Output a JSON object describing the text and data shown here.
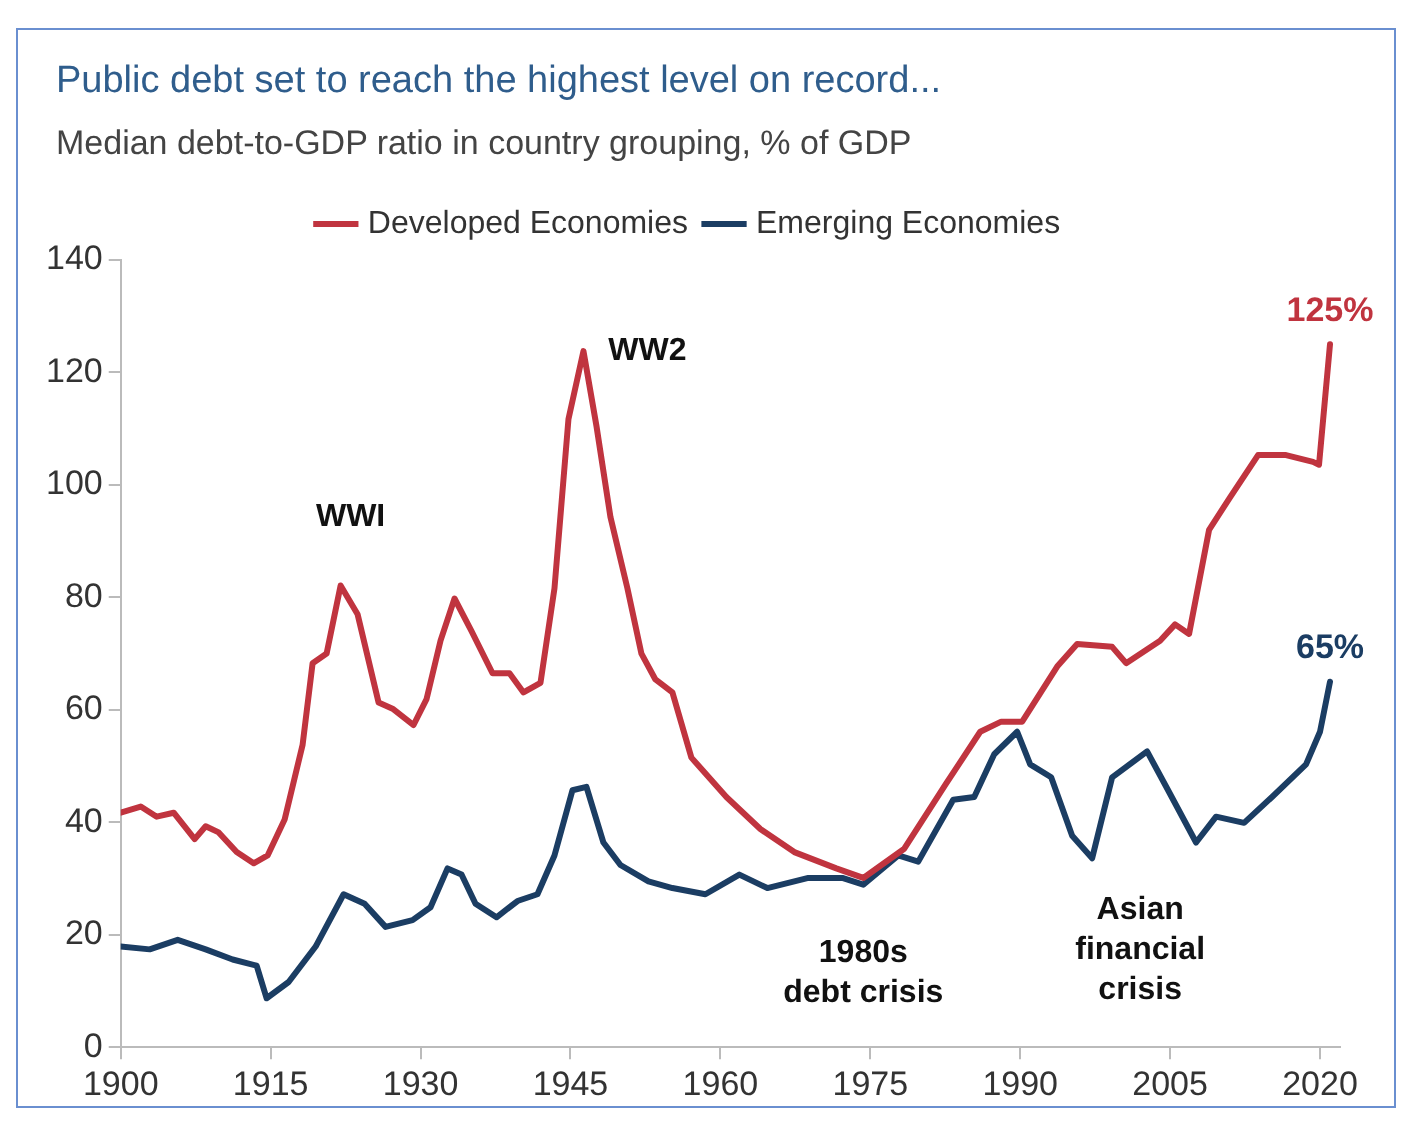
{
  "chart_data": {
    "type": "line",
    "title": "Public debt set to reach the highest level on record...",
    "subtitle": "Median debt-to-GDP ratio in country grouping, % of GDP",
    "series": [
      {
        "name": "Developed Economies",
        "color": "#c0343f",
        "x": [
          1900,
          1902,
          1903.6,
          1905.3,
          1907.4,
          1908.5,
          1909.8,
          1911.6,
          1913.3,
          1914.7,
          1916.4,
          1918.2,
          1919.2,
          1920.6,
          1922,
          1923.7,
          1925.8,
          1927.2,
          1929.3,
          1930.6,
          1932,
          1933.4,
          1935.1,
          1937.2,
          1938.9,
          1940.3,
          1942,
          1943.4,
          1944.8,
          1946.3,
          1947.6,
          1949,
          1950.7,
          1952.1,
          1953.5,
          1955.2,
          1957.1,
          1960.6,
          1964,
          1967.4,
          1971.6,
          1974.3,
          1978.4,
          1982.6,
          1986,
          1988.1,
          1990.2,
          1993.7,
          1995.7,
          1999.2,
          2000.6,
          2004,
          2005.5,
          2006.9,
          2008.9,
          2011,
          2013.8,
          2016.6,
          2019.3,
          2019.9,
          2021
        ],
        "values": [
          41.7,
          42.8,
          41,
          41.7,
          37,
          39.3,
          38.2,
          34.7,
          32.7,
          34.1,
          40.5,
          53.8,
          68.3,
          70,
          82.1,
          77,
          61.3,
          60.2,
          57.3,
          61.9,
          72.3,
          79.8,
          74,
          66.5,
          66.5,
          63.1,
          64.8,
          81.6,
          111.7,
          123.8,
          110.5,
          94.3,
          81.6,
          70,
          65.4,
          63.1,
          51.5,
          44.5,
          38.8,
          34.7,
          31.8,
          30.1,
          35.3,
          46.9,
          56.1,
          57.9,
          57.9,
          67.7,
          71.7,
          71.2,
          68.3,
          72.3,
          75.2,
          73.5,
          92,
          97.8,
          105.3,
          105.3,
          104.1,
          103.6,
          125
        ],
        "value_labels": [
          null,
          null,
          null,
          null,
          null,
          null,
          null,
          null,
          null,
          null,
          null,
          null,
          null,
          null,
          null,
          null,
          null,
          null,
          null,
          null,
          null,
          null,
          null,
          null,
          null,
          null,
          null,
          null,
          null,
          null,
          null,
          null,
          null,
          null,
          null,
          null,
          null,
          null,
          null,
          null,
          null,
          null,
          null,
          null,
          null,
          null,
          null,
          null,
          null,
          null,
          null,
          null,
          null,
          null,
          null,
          null,
          null,
          null,
          null,
          null,
          "125%"
        ]
      },
      {
        "name": "Emerging Economies",
        "color": "#1b3d63",
        "x": [
          1900,
          1902.9,
          1905.7,
          1908.5,
          1911.2,
          1913.6,
          1914.6,
          1916.8,
          1919.5,
          1922.3,
          1924.4,
          1926.5,
          1929.2,
          1931,
          1932.7,
          1934.1,
          1935.5,
          1937.6,
          1939.7,
          1941.7,
          1943.4,
          1945.2,
          1946.6,
          1948.3,
          1950,
          1952.8,
          1955.2,
          1958.5,
          1961.9,
          1964.7,
          1968.8,
          1972.2,
          1974.3,
          1977.8,
          1979.8,
          1983.3,
          1985.4,
          1987.4,
          1989.7,
          1991,
          1993.1,
          1995.2,
          1997.2,
          1999.2,
          2002.7,
          2004.8,
          2007.6,
          2009.6,
          2012.4,
          2015.2,
          2018.6,
          2020,
          2021
        ],
        "values": [
          17.9,
          17.4,
          19.1,
          17.4,
          15.6,
          14.5,
          8.7,
          11.6,
          17.9,
          27.2,
          25.5,
          21.4,
          22.6,
          24.9,
          31.8,
          30.7,
          25.5,
          23.1,
          26,
          27.2,
          34.1,
          45.7,
          46.3,
          36.4,
          32.4,
          29.5,
          28.3,
          27.2,
          30.7,
          28.3,
          30.1,
          30.1,
          28.9,
          34.1,
          33,
          44,
          44.5,
          52.1,
          56.1,
          50.3,
          48,
          37.6,
          33.6,
          48,
          52.6,
          45.7,
          36.4,
          41,
          39.9,
          44.5,
          50.3,
          56.1,
          65
        ],
        "value_labels": [
          null,
          null,
          null,
          null,
          null,
          null,
          null,
          null,
          null,
          null,
          null,
          null,
          null,
          null,
          null,
          null,
          null,
          null,
          null,
          null,
          null,
          null,
          null,
          null,
          null,
          null,
          null,
          null,
          null,
          null,
          null,
          null,
          null,
          null,
          null,
          null,
          null,
          null,
          null,
          null,
          null,
          null,
          null,
          null,
          null,
          null,
          null,
          null,
          null,
          null,
          null,
          null,
          "65%"
        ]
      }
    ],
    "xlim": [
      1900,
      2022
    ],
    "xticks": [
      1900,
      1915,
      1930,
      1945,
      1960,
      1975,
      1990,
      2005,
      2020
    ],
    "ylim": [
      0,
      140
    ],
    "yticks": [
      0,
      20,
      40,
      60,
      80,
      100,
      120,
      140
    ],
    "grid": false,
    "legend": "top",
    "marker": "none",
    "line_style": "solid",
    "annotations": [
      {
        "text": "WWI",
        "x": 1922,
        "y": 82.1
      },
      {
        "text": "WW2",
        "x": 1946.3,
        "y": 123.8
      },
      {
        "text": "1980s\ndebt crisis",
        "x": 1974.3,
        "y": 28.9
      },
      {
        "text": "Asian\nfinancial\ncrisis",
        "x": 1997.2,
        "y": 33.6
      }
    ]
  }
}
